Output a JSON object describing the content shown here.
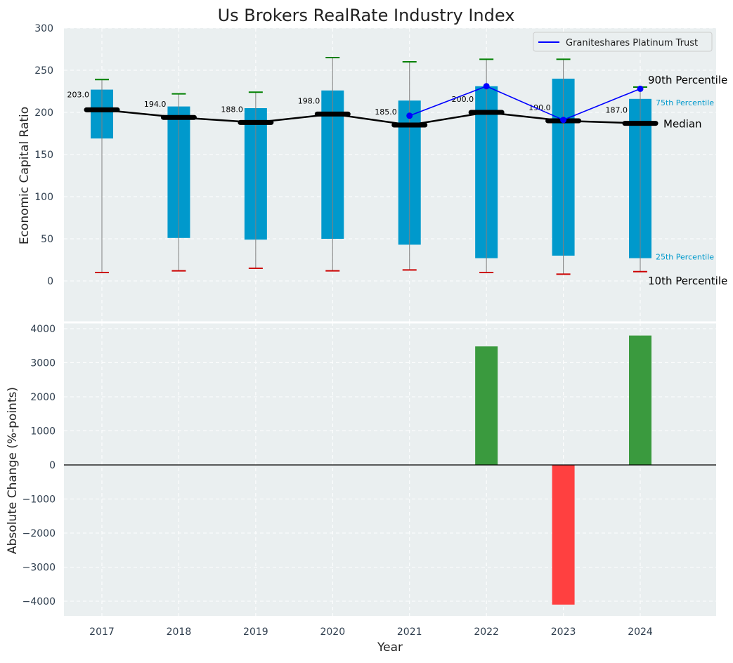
{
  "chart_data": [
    {
      "type": "box",
      "title": "Us Brokers RealRate Industry Index",
      "xlabel": "",
      "ylabel": "Economic Capital Ratio",
      "ylim": [
        -45,
        300
      ],
      "yticks": [
        0,
        50,
        100,
        150,
        200,
        250,
        300
      ],
      "grid": true,
      "legend_position": "top-right",
      "categories": [
        "2017",
        "2018",
        "2019",
        "2020",
        "2021",
        "2022",
        "2023",
        "2024"
      ],
      "percentiles": {
        "p10": [
          10,
          12,
          15,
          12,
          13,
          10,
          8,
          11
        ],
        "p25": [
          169,
          51,
          49,
          50,
          43,
          27,
          30,
          27
        ],
        "median": [
          203,
          194,
          188,
          198,
          185,
          200,
          190,
          187
        ],
        "p75": [
          227,
          207,
          205,
          226,
          214,
          231,
          240,
          216
        ],
        "p90": [
          239,
          222,
          224,
          265,
          260,
          263,
          263,
          230
        ]
      },
      "median_labels": [
        "203.0",
        "194.0",
        "188.0",
        "198.0",
        "185.0",
        "200.0",
        "190.0",
        "187.0"
      ],
      "series": [
        {
          "name": "Graniteshares Platinum Trust",
          "x": [
            "2021",
            "2022",
            "2023",
            "2024"
          ],
          "values": [
            196,
            231,
            191,
            228
          ]
        }
      ],
      "annotations": {
        "p90": "90th Percentile",
        "p75": "75th Percentile",
        "median": "Median",
        "p25": "25th Percentile",
        "p10": "10th Percentile"
      },
      "colors": {
        "box": "#0099cc",
        "median": "#000000",
        "p90_cap": "#008000",
        "p10_cap": "#cc0000",
        "series": "#0000ff",
        "whisker": "#808080",
        "background": "#eaeff0"
      }
    },
    {
      "type": "bar",
      "title": "",
      "xlabel": "Year",
      "ylabel": "Absolute Change (%-points)",
      "ylim": [
        -4450,
        4200
      ],
      "yticks": [
        -4000,
        -3000,
        -2000,
        -1000,
        0,
        1000,
        2000,
        3000,
        4000
      ],
      "ytick_labels": [
        "−4000",
        "−3000",
        "−2000",
        "−1000",
        "0",
        "1000",
        "2000",
        "3000",
        "4000"
      ],
      "grid": true,
      "categories": [
        "2017",
        "2018",
        "2019",
        "2020",
        "2021",
        "2022",
        "2023",
        "2024"
      ],
      "values": [
        0,
        0,
        0,
        0,
        0,
        3480,
        -4100,
        3800
      ],
      "colors": {
        "positive": "#3a9a3e",
        "negative": "#ff4040",
        "zero_line": "#000000",
        "background": "#eaeff0"
      }
    }
  ]
}
